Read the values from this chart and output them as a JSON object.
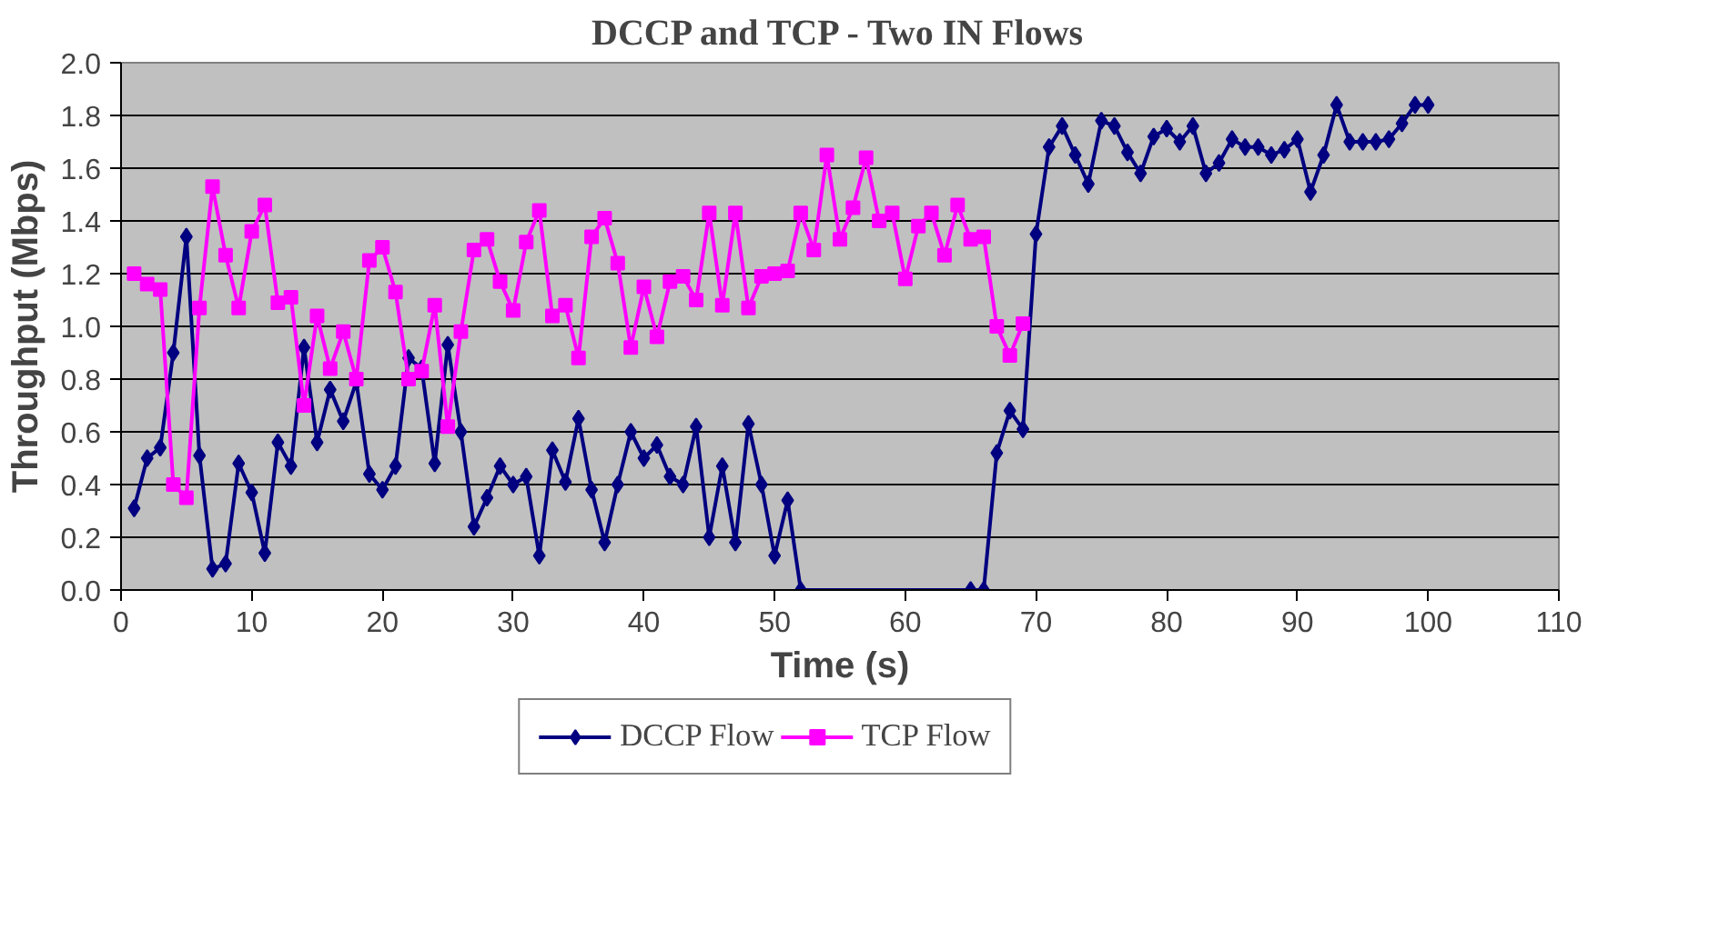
{
  "chart_data": {
    "type": "line",
    "title": "DCCP and TCP - Two IN Flows",
    "xlabel": "Time (s)",
    "ylabel": "Throughput (Mbps)",
    "xlim": [
      0,
      110
    ],
    "xticks": [
      0,
      10,
      20,
      30,
      40,
      50,
      60,
      70,
      80,
      90,
      100,
      110
    ],
    "ylim": [
      0,
      2.0
    ],
    "yticks": [
      {
        "value": 0,
        "label": "0.0"
      },
      {
        "value": 0.2,
        "label": "0.2"
      },
      {
        "value": 0.4,
        "label": "0.4"
      },
      {
        "value": 0.6,
        "label": "0.6"
      },
      {
        "value": 0.8,
        "label": "0.8"
      },
      {
        "value": 1.0,
        "label": "1.0"
      },
      {
        "value": 1.2,
        "label": "1.2"
      },
      {
        "value": 1.4,
        "label": "1.4"
      },
      {
        "value": 1.6,
        "label": "1.6"
      },
      {
        "value": 1.8,
        "label": "1.8"
      },
      {
        "value": 2.0,
        "label": "2.0"
      }
    ],
    "grid": "y",
    "legend": "bottom",
    "series": [
      {
        "name": "DCCP Flow",
        "color": "#000080",
        "marker": "diamond",
        "x": [
          1,
          2,
          3,
          4,
          5,
          6,
          7,
          8,
          9,
          10,
          11,
          12,
          13,
          14,
          15,
          16,
          17,
          18,
          19,
          20,
          21,
          22,
          23,
          24,
          25,
          26,
          27,
          28,
          29,
          30,
          31,
          32,
          33,
          34,
          35,
          36,
          37,
          38,
          39,
          40,
          41,
          42,
          43,
          44,
          45,
          46,
          47,
          48,
          49,
          50,
          51,
          52,
          65,
          66,
          67,
          68,
          69,
          70,
          71,
          72,
          73,
          74,
          75,
          76,
          77,
          78,
          79,
          80,
          81,
          82,
          83,
          84,
          85,
          86,
          87,
          88,
          89,
          90,
          91,
          92,
          93,
          94,
          95,
          96,
          97,
          98,
          99,
          100
        ],
        "values": [
          0.31,
          0.5,
          0.54,
          0.9,
          1.34,
          0.51,
          0.08,
          0.1,
          0.48,
          0.37,
          0.14,
          0.56,
          0.47,
          0.92,
          0.56,
          0.76,
          0.64,
          0.79,
          0.44,
          0.38,
          0.47,
          0.88,
          0.84,
          0.48,
          0.93,
          0.6,
          0.24,
          0.35,
          0.47,
          0.4,
          0.43,
          0.13,
          0.53,
          0.41,
          0.65,
          0.38,
          0.18,
          0.4,
          0.6,
          0.5,
          0.55,
          0.43,
          0.4,
          0.62,
          0.2,
          0.47,
          0.18,
          0.63,
          0.4,
          0.13,
          0.34,
          0.0,
          0.0,
          0.0,
          0.52,
          0.68,
          0.61,
          1.35,
          1.68,
          1.76,
          1.65,
          1.54,
          1.78,
          1.76,
          1.66,
          1.58,
          1.72,
          1.75,
          1.7,
          1.76,
          1.58,
          1.62,
          1.71,
          1.68,
          1.68,
          1.65,
          1.67,
          1.71,
          1.51,
          1.65,
          1.84,
          1.7,
          1.7,
          1.7,
          1.71,
          1.77,
          1.84,
          1.84
        ]
      },
      {
        "name": "TCP Flow",
        "color": "#ff00ff",
        "marker": "square",
        "x": [
          1,
          2,
          3,
          4,
          5,
          6,
          7,
          8,
          9,
          10,
          11,
          12,
          13,
          14,
          15,
          16,
          17,
          18,
          19,
          20,
          21,
          22,
          23,
          24,
          25,
          26,
          27,
          28,
          29,
          30,
          31,
          32,
          33,
          34,
          35,
          36,
          37,
          38,
          39,
          40,
          41,
          42,
          43,
          44,
          45,
          46,
          47,
          48,
          49,
          50,
          51,
          52,
          53,
          54,
          55,
          56,
          57,
          58,
          59,
          60,
          61,
          62,
          63,
          64,
          65,
          66,
          67,
          68,
          69
        ],
        "values": [
          1.2,
          1.16,
          1.14,
          0.4,
          0.35,
          1.07,
          1.53,
          1.27,
          1.07,
          1.36,
          1.46,
          1.09,
          1.11,
          0.7,
          1.04,
          0.84,
          0.98,
          0.8,
          1.25,
          1.3,
          1.13,
          0.8,
          0.83,
          1.08,
          0.62,
          0.98,
          1.29,
          1.33,
          1.17,
          1.06,
          1.32,
          1.44,
          1.04,
          1.08,
          0.88,
          1.34,
          1.41,
          1.24,
          0.92,
          1.15,
          0.96,
          1.17,
          1.19,
          1.1,
          1.43,
          1.08,
          1.43,
          1.07,
          1.19,
          1.2,
          1.21,
          1.43,
          1.29,
          1.65,
          1.33,
          1.45,
          1.64,
          1.4,
          1.43,
          1.18,
          1.38,
          1.43,
          1.27,
          1.46,
          1.33,
          1.34,
          1.0,
          0.89,
          1.01
        ]
      }
    ]
  }
}
